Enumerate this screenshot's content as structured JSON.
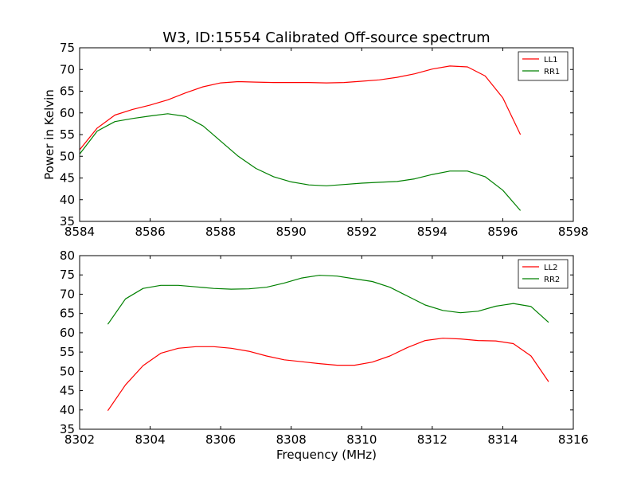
{
  "figure": {
    "title": "W3, ID:15554 Calibrated Off-source spectrum",
    "xlabel": "Frequency (MHz)"
  },
  "chart_data": [
    {
      "type": "line",
      "ylabel": "Power in Kelvin",
      "xlabel": "",
      "xlim": [
        8584,
        8598
      ],
      "ylim": [
        35,
        75
      ],
      "xticks": [
        8584,
        8586,
        8588,
        8590,
        8592,
        8594,
        8596,
        8598
      ],
      "yticks": [
        35,
        40,
        45,
        50,
        55,
        60,
        65,
        70,
        75
      ],
      "grid": false,
      "legend_position": "top-right",
      "series": [
        {
          "name": "LL1",
          "color": "#ff0000",
          "x": [
            8584.0,
            8584.5,
            8585.0,
            8585.5,
            8586.0,
            8586.5,
            8587.0,
            8587.5,
            8588.0,
            8588.5,
            8589.0,
            8589.5,
            8590.0,
            8590.5,
            8591.0,
            8591.5,
            8592.0,
            8592.5,
            8593.0,
            8593.5,
            8594.0,
            8594.5,
            8595.0,
            8595.5,
            8596.0,
            8596.5
          ],
          "y": [
            51.5,
            56.5,
            59.5,
            60.8,
            61.8,
            63.0,
            64.6,
            66.0,
            66.9,
            67.2,
            67.1,
            67.0,
            67.0,
            67.0,
            66.9,
            67.0,
            67.3,
            67.6,
            68.2,
            69.0,
            70.1,
            70.8,
            70.6,
            68.5,
            63.5,
            55.0
          ]
        },
        {
          "name": "RR1",
          "color": "#008000",
          "x": [
            8584.0,
            8584.5,
            8585.0,
            8585.5,
            8586.0,
            8586.5,
            8587.0,
            8587.5,
            8588.0,
            8588.5,
            8589.0,
            8589.5,
            8590.0,
            8590.5,
            8591.0,
            8591.5,
            8592.0,
            8592.5,
            8593.0,
            8593.5,
            8594.0,
            8594.5,
            8595.0,
            8595.5,
            8596.0,
            8596.5
          ],
          "y": [
            50.5,
            55.8,
            58.0,
            58.7,
            59.3,
            59.8,
            59.2,
            57.0,
            53.5,
            50.0,
            47.2,
            45.3,
            44.1,
            43.4,
            43.2,
            43.5,
            43.8,
            44.0,
            44.2,
            44.8,
            45.8,
            46.6,
            46.6,
            45.3,
            42.2,
            37.5
          ]
        }
      ]
    },
    {
      "type": "line",
      "ylabel": "",
      "xlabel": "Frequency (MHz)",
      "xlim": [
        8302,
        8316
      ],
      "ylim": [
        35,
        80
      ],
      "xticks": [
        8302,
        8304,
        8306,
        8308,
        8310,
        8312,
        8314,
        8316
      ],
      "yticks": [
        35,
        40,
        45,
        50,
        55,
        60,
        65,
        70,
        75,
        80
      ],
      "grid": false,
      "legend_position": "top-right",
      "series": [
        {
          "name": "LL2",
          "color": "#ff0000",
          "x": [
            8302.8,
            8303.3,
            8303.8,
            8304.3,
            8304.8,
            8305.3,
            8305.8,
            8306.3,
            8306.8,
            8307.3,
            8307.8,
            8308.3,
            8308.8,
            8309.3,
            8309.8,
            8310.3,
            8310.8,
            8311.3,
            8311.8,
            8312.3,
            8312.8,
            8313.3,
            8313.8,
            8314.3,
            8314.8,
            8315.3
          ],
          "y": [
            39.8,
            46.5,
            51.5,
            54.7,
            56.0,
            56.4,
            56.4,
            56.0,
            55.2,
            54.0,
            53.0,
            52.5,
            52.0,
            51.6,
            51.6,
            52.4,
            54.0,
            56.2,
            58.0,
            58.6,
            58.4,
            58.0,
            57.9,
            57.2,
            54.0,
            47.3
          ]
        },
        {
          "name": "RR2",
          "color": "#008000",
          "x": [
            8302.8,
            8303.3,
            8303.8,
            8304.3,
            8304.8,
            8305.3,
            8305.8,
            8306.3,
            8306.8,
            8307.3,
            8307.8,
            8308.3,
            8308.8,
            8309.3,
            8309.8,
            8310.3,
            8310.8,
            8311.3,
            8311.8,
            8312.3,
            8312.8,
            8313.3,
            8313.8,
            8314.3,
            8314.8,
            8315.3
          ],
          "y": [
            62.2,
            68.8,
            71.5,
            72.3,
            72.3,
            71.9,
            71.5,
            71.3,
            71.4,
            71.8,
            72.9,
            74.2,
            74.9,
            74.7,
            74.0,
            73.3,
            71.8,
            69.5,
            67.2,
            65.8,
            65.2,
            65.6,
            66.9,
            67.6,
            66.8,
            62.7
          ]
        }
      ]
    }
  ]
}
